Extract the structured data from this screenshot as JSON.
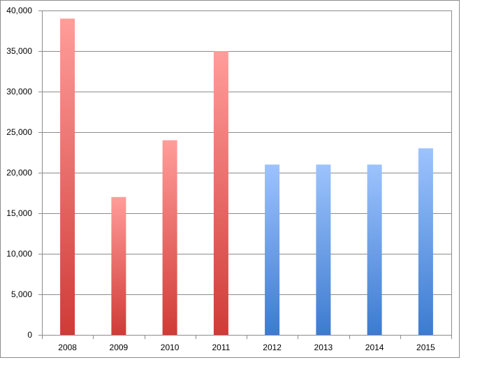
{
  "chart_data": {
    "type": "bar",
    "categories": [
      "2008",
      "2009",
      "2010",
      "2011",
      "2012",
      "2013",
      "2014",
      "2015"
    ],
    "values": [
      39000,
      17000,
      24000,
      35000,
      21000,
      21000,
      21000,
      23000
    ],
    "ylim": [
      0,
      40000
    ],
    "y_ticks": [
      0,
      5000,
      10000,
      15000,
      20000,
      25000,
      30000,
      35000,
      40000
    ],
    "y_tick_labels": [
      "0",
      "5,000",
      "10,000",
      "15,000",
      "20,000",
      "25,000",
      "30,000",
      "35,000",
      "40,000"
    ],
    "grid": true,
    "legend": "none",
    "title": "",
    "xlabel": "",
    "ylabel": "",
    "bar_groups": [
      {
        "categories": [
          "2008",
          "2009",
          "2010",
          "2011"
        ],
        "color_top": "#ff9d9a",
        "color_bottom": "#d03b37"
      },
      {
        "categories": [
          "2012",
          "2013",
          "2014",
          "2015"
        ],
        "color_top": "#9dc3fd",
        "color_bottom": "#3c7bd0"
      }
    ],
    "colors": {
      "gridline": "#8c8c8c",
      "frame": "#8c8c8c",
      "background": "#ffffff"
    }
  }
}
